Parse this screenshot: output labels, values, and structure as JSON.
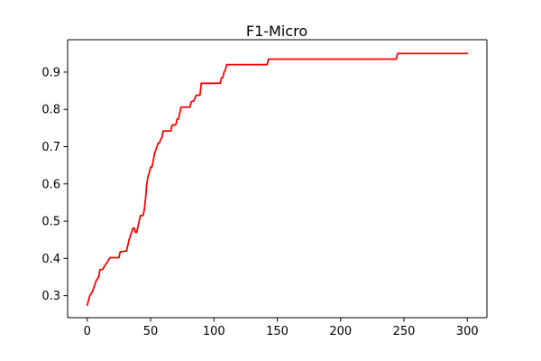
{
  "chart_data": {
    "type": "line",
    "title": "F1-Micro",
    "xlabel": "",
    "ylabel": "",
    "xlim": [
      -15.5,
      315.5
    ],
    "ylim": [
      0.241,
      0.987
    ],
    "xticks": [
      0,
      50,
      100,
      150,
      200,
      250,
      300
    ],
    "yticks": [
      0.3,
      0.4,
      0.5,
      0.6,
      0.7,
      0.8,
      0.9
    ],
    "xtick_labels": [
      "0",
      "50",
      "100",
      "150",
      "200",
      "250",
      "300"
    ],
    "ytick_labels": [
      "0.3",
      "0.4",
      "0.5",
      "0.6",
      "0.7",
      "0.8",
      "0.9"
    ],
    "grid": false,
    "legend": "none",
    "series": [
      {
        "color": "#ff0000",
        "x": [
          0,
          2,
          4,
          5,
          6,
          7,
          8,
          9,
          10,
          12,
          18,
          25,
          26,
          27,
          31,
          32,
          33,
          34,
          35,
          36,
          37,
          38,
          39,
          41,
          42,
          44,
          45,
          46,
          47,
          48,
          49,
          50,
          51,
          52,
          53,
          54,
          55,
          56,
          57,
          58,
          59,
          60,
          61,
          62,
          63,
          64,
          65,
          66,
          67,
          68,
          69,
          70,
          71,
          72,
          73,
          74,
          75,
          76,
          77,
          78,
          79,
          80,
          81,
          82,
          83,
          84,
          85,
          86,
          87,
          88,
          89,
          90,
          91,
          92,
          93,
          94,
          95,
          96,
          97,
          98,
          99,
          100,
          101,
          102,
          103,
          104,
          105,
          106,
          107,
          108,
          109,
          110,
          142,
          143,
          144,
          244,
          245,
          246,
          300
        ],
        "y": [
          0.275,
          0.3,
          0.31,
          0.32,
          0.33,
          0.34,
          0.345,
          0.35,
          0.37,
          0.37,
          0.402,
          0.402,
          0.418,
          0.418,
          0.42,
          0.435,
          0.45,
          0.46,
          0.47,
          0.48,
          0.482,
          0.47,
          0.47,
          0.5,
          0.515,
          0.515,
          0.53,
          0.56,
          0.6,
          0.62,
          0.63,
          0.645,
          0.645,
          0.66,
          0.68,
          0.69,
          0.7,
          0.71,
          0.71,
          0.72,
          0.725,
          0.742,
          0.742,
          0.742,
          0.742,
          0.742,
          0.742,
          0.742,
          0.758,
          0.758,
          0.758,
          0.76,
          0.774,
          0.774,
          0.79,
          0.806,
          0.806,
          0.806,
          0.806,
          0.806,
          0.806,
          0.806,
          0.806,
          0.82,
          0.822,
          0.822,
          0.83,
          0.838,
          0.838,
          0.838,
          0.838,
          0.87,
          0.87,
          0.87,
          0.87,
          0.87,
          0.87,
          0.87,
          0.87,
          0.87,
          0.87,
          0.87,
          0.87,
          0.87,
          0.87,
          0.87,
          0.87,
          0.885,
          0.885,
          0.9,
          0.905,
          0.92,
          0.92,
          0.935,
          0.935,
          0.935,
          0.95,
          0.95,
          0.95
        ]
      }
    ]
  }
}
